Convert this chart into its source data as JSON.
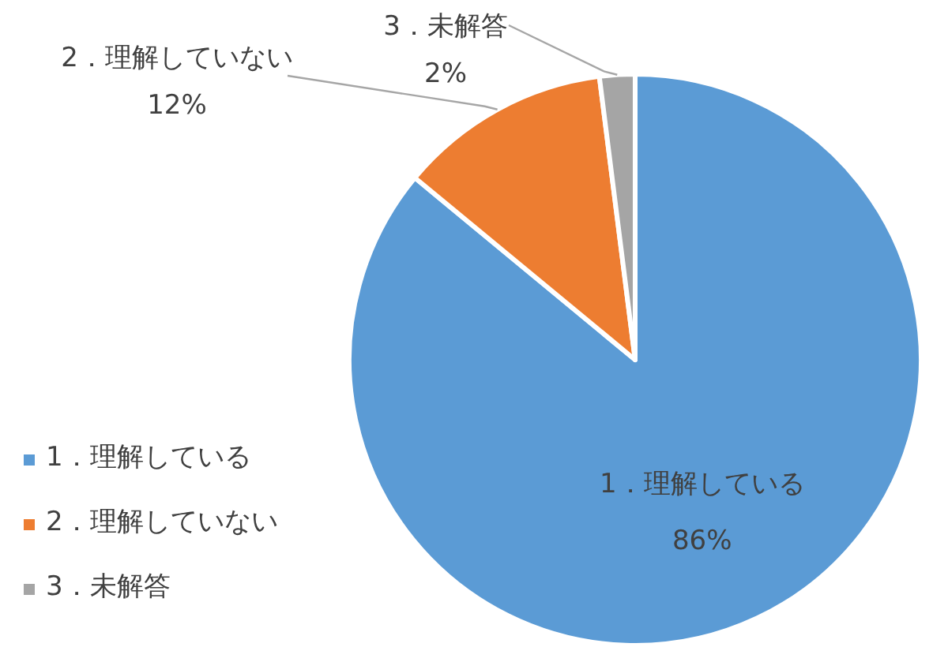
{
  "chart_data": {
    "type": "pie",
    "categories": [
      "1．理解している",
      "2．理解していない",
      "3．未解答"
    ],
    "values": [
      86,
      12,
      2
    ],
    "value_labels": [
      "86%",
      "12%",
      "2%"
    ],
    "colors": [
      "#5b9bd5",
      "#ed7d31",
      "#a5a5a5"
    ],
    "legend": "bottom left"
  }
}
